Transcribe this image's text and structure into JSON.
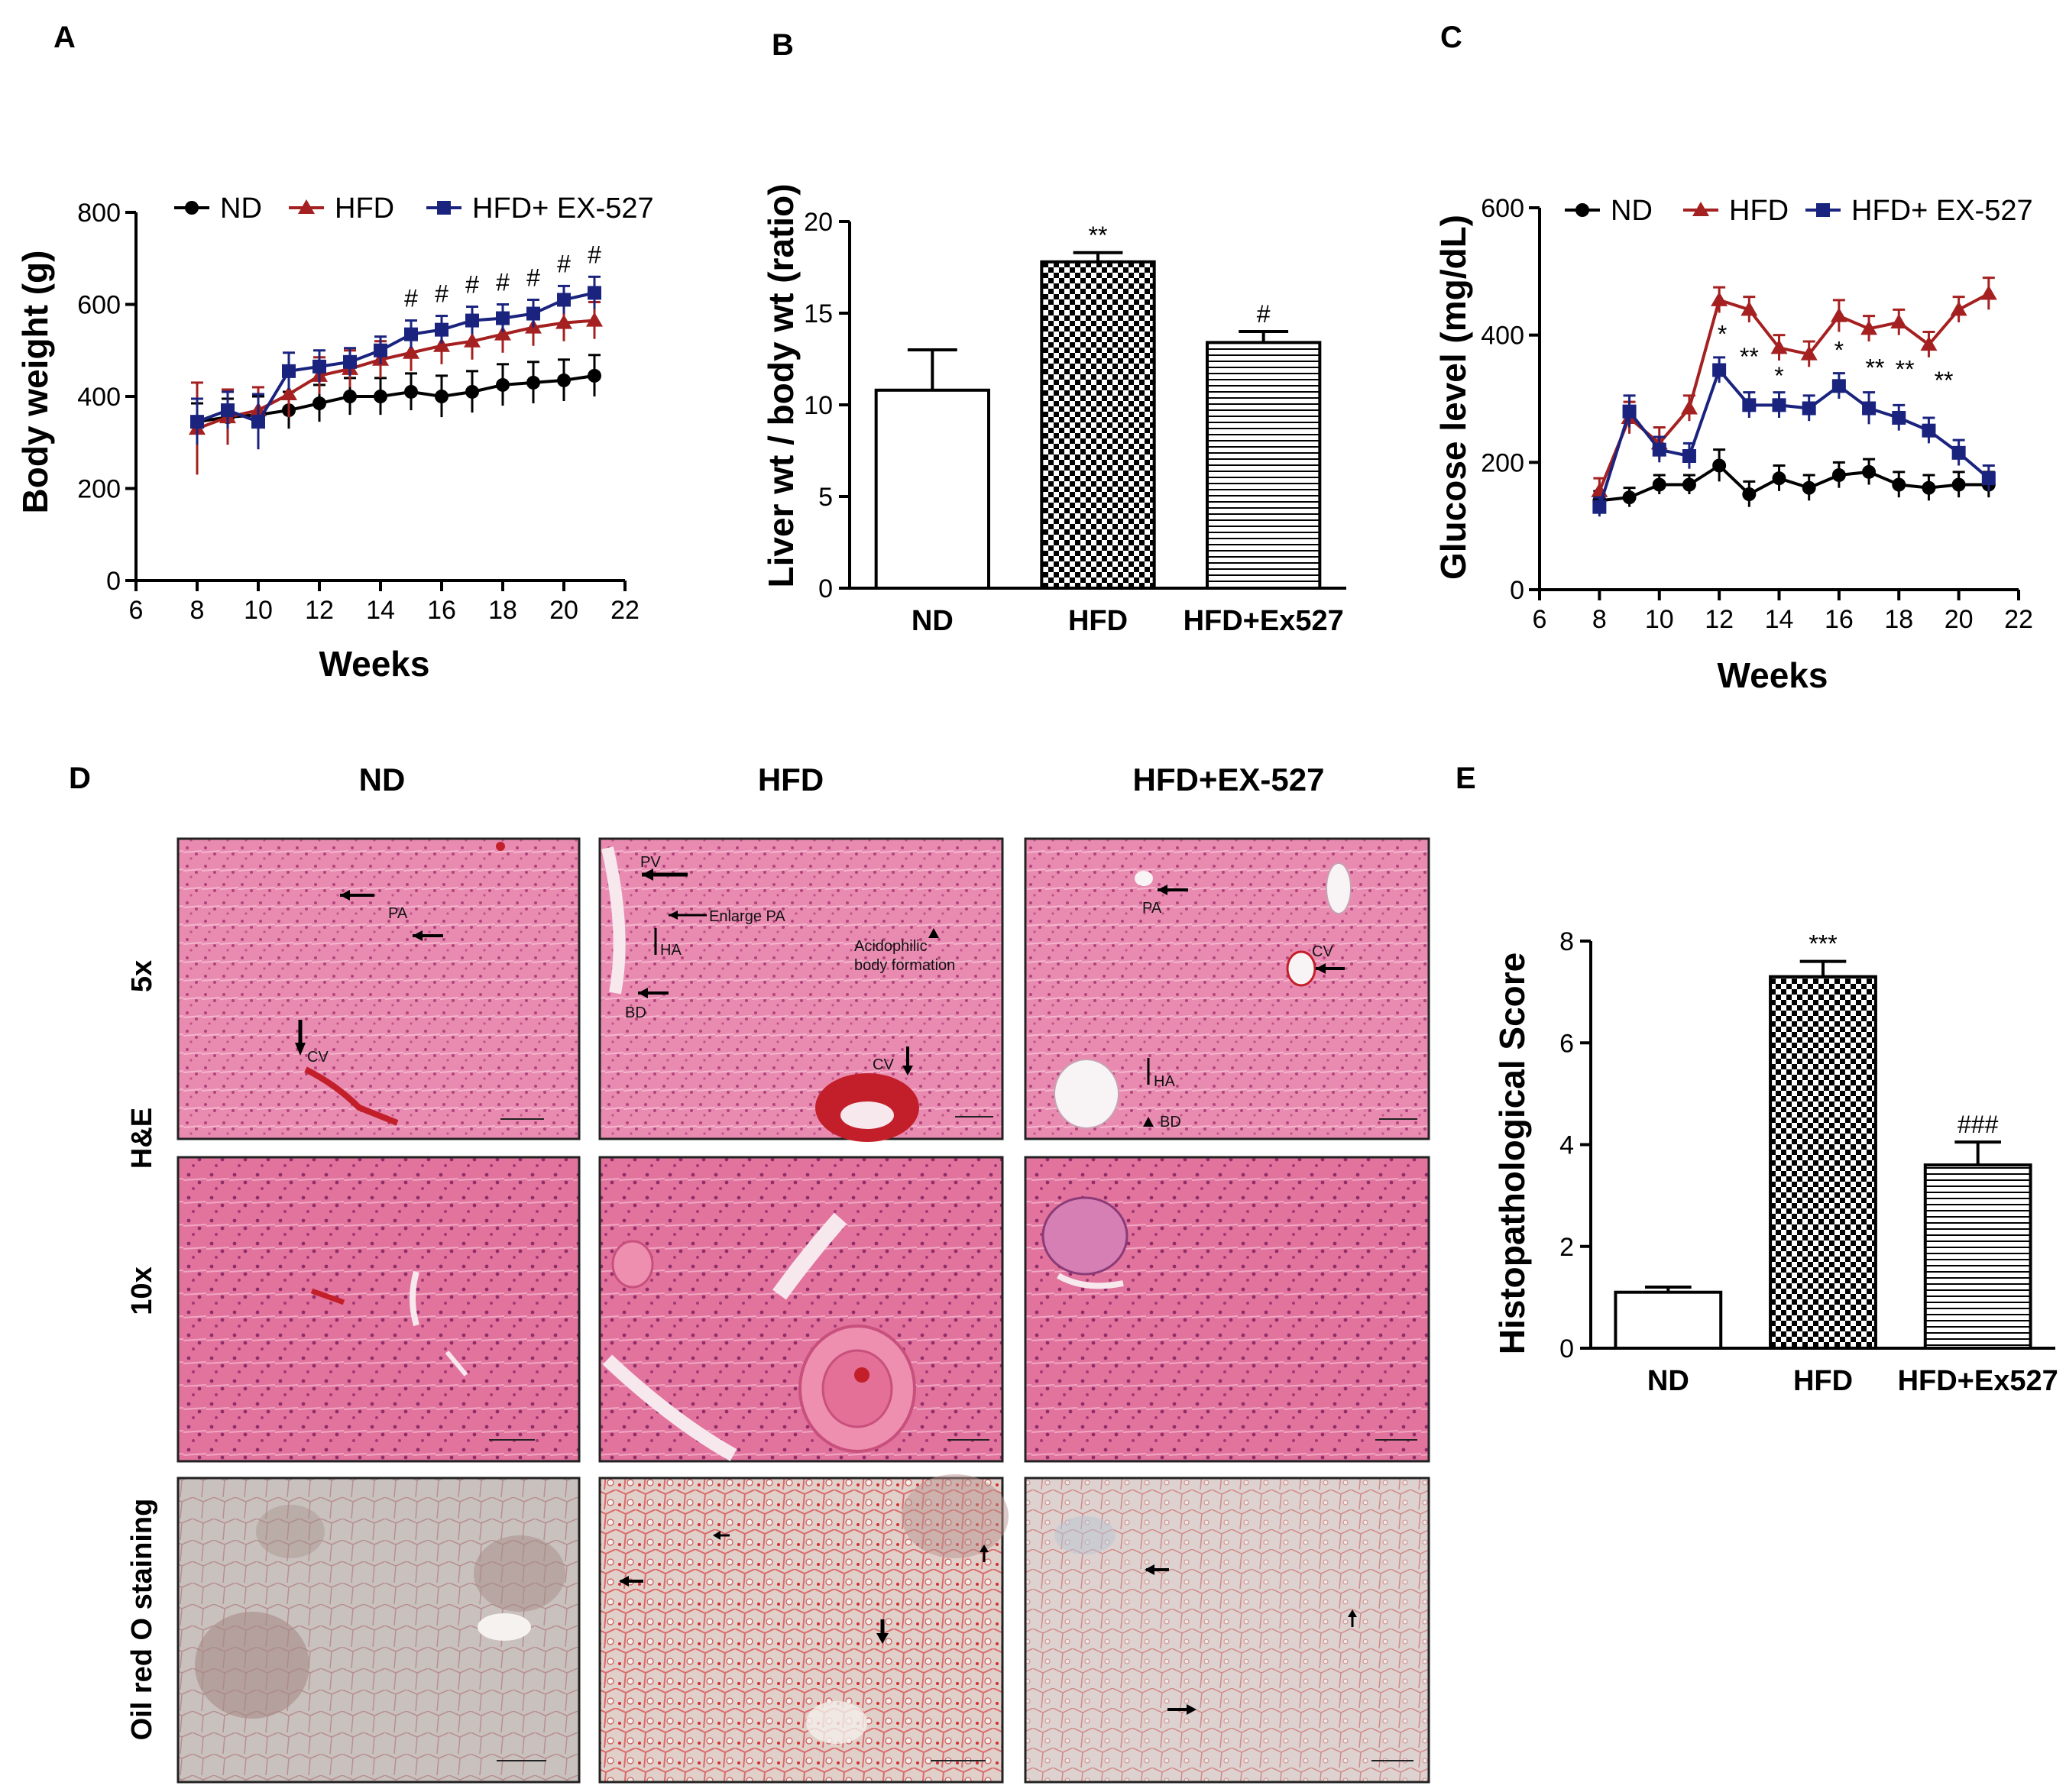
{
  "colors": {
    "nd": "#000000",
    "hfd": "#a52020",
    "ex": "#1a237e",
    "tissue_he": "#e87ea6",
    "tissue_oil": "#d9c7c2"
  },
  "chart_data": [
    {
      "id": "A",
      "type": "line",
      "panel_label": "A",
      "xlabel": "Weeks",
      "ylabel": "Body weight (g)",
      "xlim": [
        6,
        22
      ],
      "ylim": [
        0,
        800
      ],
      "xticks": [
        "6",
        "8",
        "10",
        "12",
        "14",
        "16",
        "18",
        "20",
        "22"
      ],
      "yticks": [
        "0",
        "200",
        "400",
        "600",
        "800"
      ],
      "x": [
        8,
        9,
        10,
        11,
        12,
        13,
        14,
        15,
        16,
        17,
        18,
        19,
        20,
        21
      ],
      "series": [
        {
          "name": "ND",
          "marker": "circle",
          "values": [
            345,
            355,
            360,
            370,
            385,
            400,
            400,
            410,
            400,
            410,
            425,
            430,
            435,
            445
          ],
          "errors": [
            40,
            40,
            40,
            40,
            40,
            40,
            40,
            40,
            45,
            45,
            45,
            45,
            45,
            45
          ]
        },
        {
          "name": "HFD",
          "marker": "triangle",
          "values": [
            330,
            355,
            370,
            405,
            445,
            460,
            480,
            495,
            510,
            520,
            535,
            550,
            560,
            565
          ],
          "errors": [
            100,
            60,
            50,
            50,
            40,
            40,
            40,
            40,
            40,
            40,
            40,
            40,
            40,
            40
          ]
        },
        {
          "name": "HFD+ EX-527",
          "marker": "square",
          "values": [
            345,
            370,
            345,
            455,
            465,
            475,
            500,
            535,
            545,
            565,
            570,
            580,
            610,
            625
          ],
          "errors": [
            50,
            40,
            60,
            40,
            35,
            30,
            30,
            30,
            30,
            30,
            30,
            30,
            30,
            35
          ]
        }
      ],
      "annotations": [
        {
          "x": 15,
          "text": "#"
        },
        {
          "x": 16,
          "text": "#"
        },
        {
          "x": 17,
          "text": "#"
        },
        {
          "x": 18,
          "text": "#"
        },
        {
          "x": 19,
          "text": "#"
        },
        {
          "x": 20,
          "text": "#"
        },
        {
          "x": 21,
          "text": "#"
        }
      ]
    },
    {
      "id": "B",
      "type": "bar",
      "panel_label": "B",
      "xlabel": "",
      "ylabel": "Liver wt / body wt (ratio)",
      "ylim": [
        0,
        20
      ],
      "yticks": [
        "0",
        "5",
        "10",
        "15",
        "20"
      ],
      "categories": [
        "ND",
        "HFD",
        "HFD+Ex527"
      ],
      "values": [
        10.8,
        17.8,
        13.4
      ],
      "errors": [
        2.2,
        0.5,
        0.6
      ],
      "fills": [
        "white",
        "checker",
        "hlines"
      ],
      "annotations": [
        "",
        "**",
        "#"
      ]
    },
    {
      "id": "C",
      "type": "line",
      "panel_label": "C",
      "xlabel": "Weeks",
      "ylabel": "Glucose level (mg/dL)",
      "xlim": [
        6,
        22
      ],
      "ylim": [
        0,
        600
      ],
      "xticks": [
        "6",
        "8",
        "10",
        "12",
        "14",
        "16",
        "18",
        "20",
        "22"
      ],
      "yticks": [
        "0",
        "200",
        "400",
        "600"
      ],
      "x": [
        8,
        9,
        10,
        11,
        12,
        13,
        14,
        15,
        16,
        17,
        18,
        19,
        20,
        21
      ],
      "series": [
        {
          "name": "ND",
          "marker": "circle",
          "values": [
            140,
            145,
            165,
            165,
            195,
            150,
            175,
            160,
            180,
            185,
            165,
            160,
            165,
            165
          ],
          "errors": [
            15,
            15,
            15,
            15,
            25,
            20,
            20,
            20,
            20,
            20,
            20,
            20,
            20,
            20
          ]
        },
        {
          "name": "HFD",
          "marker": "triangle",
          "values": [
            155,
            270,
            230,
            285,
            455,
            440,
            380,
            370,
            430,
            410,
            420,
            385,
            440,
            465
          ],
          "errors": [
            20,
            25,
            25,
            20,
            20,
            20,
            20,
            20,
            25,
            20,
            20,
            20,
            20,
            25
          ]
        },
        {
          "name": "HFD+ EX-527",
          "marker": "square",
          "values": [
            130,
            280,
            220,
            210,
            345,
            290,
            290,
            285,
            320,
            285,
            270,
            250,
            215,
            175
          ],
          "errors": [
            15,
            25,
            20,
            20,
            20,
            20,
            20,
            20,
            20,
            25,
            20,
            20,
            20,
            20
          ]
        }
      ],
      "annotations": [
        {
          "x": 12.1,
          "text": "*"
        },
        {
          "x": 13,
          "text": "**"
        },
        {
          "x": 14,
          "text": "*"
        },
        {
          "x": 16,
          "text": "*"
        },
        {
          "x": 17.2,
          "text": "**"
        },
        {
          "x": 18.2,
          "text": "**"
        },
        {
          "x": 19.5,
          "text": "**"
        }
      ]
    },
    {
      "id": "E",
      "type": "bar",
      "panel_label": "E",
      "xlabel": "",
      "ylabel": "Histopathological Score",
      "ylim": [
        0,
        8
      ],
      "yticks": [
        "0",
        "2",
        "4",
        "6",
        "8"
      ],
      "categories": [
        "ND",
        "HFD",
        "HFD+Ex527"
      ],
      "values": [
        1.1,
        7.3,
        3.6
      ],
      "errors": [
        0.1,
        0.3,
        0.45
      ],
      "fills": [
        "white",
        "checker",
        "hlines"
      ],
      "annotations": [
        "",
        "***",
        "###"
      ]
    }
  ],
  "histology": {
    "panel_label": "D",
    "columns": [
      "ND",
      "HFD",
      "HFD+EX-527"
    ],
    "rows": [
      "5x",
      "10x",
      "Oil red O staining"
    ],
    "group_label": "H&E",
    "annotations": {
      "nd_5x": [
        "PA",
        "CV"
      ],
      "hfd_5x": [
        "PV",
        "Enlarge PA",
        "HA",
        "Acidophilic",
        "body formation",
        "BD",
        "CV"
      ],
      "ex_5x": [
        "PA",
        "CV",
        "HA",
        "BD"
      ]
    }
  }
}
